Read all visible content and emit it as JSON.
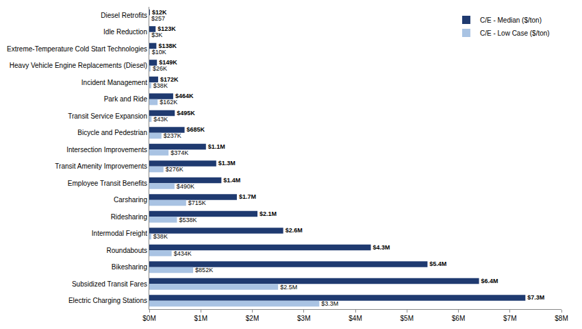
{
  "chart_data": {
    "type": "bar",
    "orientation": "horizontal",
    "categories": [
      "Diesel Retrofits",
      "Idle Reduction",
      "Extreme-Temperature Cold Start Technologies",
      "Heavy Vehicle Engine Replacements (Diesel)",
      "Incident Management",
      "Park and Ride",
      "Transit Service Expansion",
      "Bicycle and Pedestrian",
      "Intersection Improvements",
      "Transit Amenity Improvements",
      "Employee Transit Benefits",
      "Carsharing",
      "Ridesharing",
      "Intermodal Freight",
      "Roundabouts",
      "Bikesharing",
      "Subsidized Transit Fares",
      "Electric Charging Stations"
    ],
    "series": [
      {
        "name": "C/E - Median ($/ton)",
        "color": "#1f3a70",
        "values": [
          12000,
          123000,
          138000,
          149000,
          172000,
          464000,
          495000,
          685000,
          1100000,
          1300000,
          1400000,
          1700000,
          2100000,
          2600000,
          4300000,
          5400000,
          6400000,
          7300000
        ],
        "value_labels": [
          "$12K",
          "$123K",
          "$138K",
          "$149K",
          "$172K",
          "$464K",
          "$495K",
          "$685K",
          "$1.1M",
          "$1.3M",
          "$1.4M",
          "$1.7M",
          "$2.1M",
          "$2.6M",
          "$4.3M",
          "$5.4M",
          "$6.4M",
          "$7.3M"
        ]
      },
      {
        "name": "C/E - Low Case ($/ton)",
        "color": "#a9c3e3",
        "values": [
          257,
          3000,
          10000,
          26000,
          38000,
          162000,
          43000,
          237000,
          374000,
          276000,
          490000,
          715000,
          538000,
          38000,
          434000,
          852000,
          2500000,
          3300000
        ],
        "value_labels": [
          "$257",
          "$3K",
          "$10K",
          "$26K",
          "$38K",
          "$162K",
          "$43K",
          "$237K",
          "$374K",
          "$276K",
          "$490K",
          "$715K",
          "$538K",
          "$38K",
          "$434K",
          "$852K",
          "$2.5M",
          "$3.3M"
        ]
      }
    ],
    "xlim": [
      0,
      8000000
    ],
    "xticks": [
      {
        "value": 0,
        "label": "$0M"
      },
      {
        "value": 1000000,
        "label": "$1M"
      },
      {
        "value": 2000000,
        "label": "$2M"
      },
      {
        "value": 3000000,
        "label": "$3M"
      },
      {
        "value": 4000000,
        "label": "$4M"
      },
      {
        "value": 5000000,
        "label": "$5M"
      },
      {
        "value": 6000000,
        "label": "$6M"
      },
      {
        "value": 7000000,
        "label": "$7M"
      },
      {
        "value": 8000000,
        "label": "$8M"
      }
    ],
    "data_labels": true,
    "grid": false,
    "legend": "upper right"
  }
}
